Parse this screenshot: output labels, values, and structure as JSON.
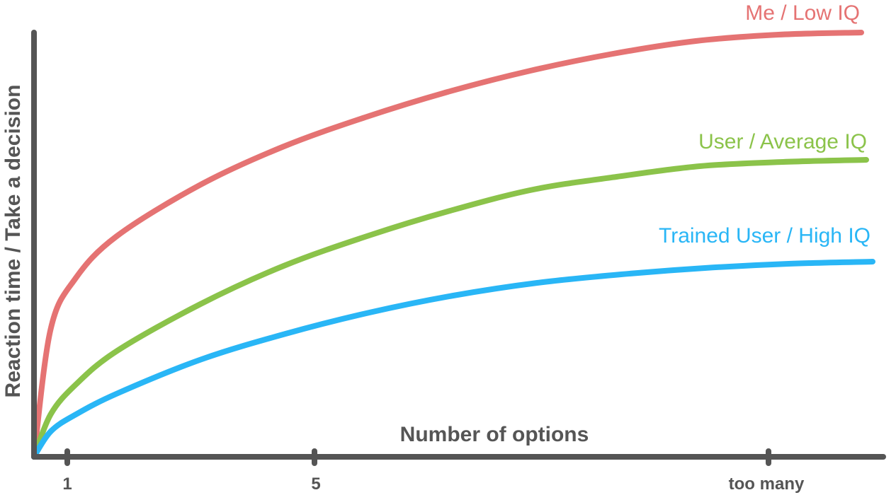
{
  "chart_data": {
    "type": "line",
    "title": "",
    "xlabel": "Number of options",
    "ylabel": "Reaction time / Take a decision",
    "x_ticks": [
      "1",
      "5",
      "too many"
    ],
    "grid": false,
    "legend": "inline labels at line ends",
    "series": [
      {
        "name": "Me / Low IQ",
        "color": "#e57373",
        "x": [
          0,
          0.02,
          0.05,
          0.1,
          0.2,
          0.3,
          0.4,
          0.5,
          0.6,
          0.7,
          0.8,
          0.9,
          1.0
        ],
        "y": [
          0,
          0.3,
          0.42,
          0.52,
          0.64,
          0.73,
          0.8,
          0.86,
          0.91,
          0.95,
          0.98,
          0.995,
          1.0
        ]
      },
      {
        "name": "User / Average IQ",
        "color": "#8bc34a",
        "x": [
          0,
          0.02,
          0.05,
          0.1,
          0.2,
          0.3,
          0.4,
          0.5,
          0.6,
          0.7,
          0.8,
          0.9,
          1.0
        ],
        "y": [
          0,
          0.1,
          0.17,
          0.25,
          0.36,
          0.45,
          0.52,
          0.58,
          0.63,
          0.66,
          0.685,
          0.695,
          0.7
        ]
      },
      {
        "name": "Trained User / High IQ",
        "color": "#29b6f6",
        "x": [
          0,
          0.02,
          0.05,
          0.1,
          0.2,
          0.3,
          0.4,
          0.5,
          0.6,
          0.7,
          0.8,
          0.9,
          1.0
        ],
        "y": [
          0,
          0.06,
          0.1,
          0.15,
          0.23,
          0.29,
          0.34,
          0.38,
          0.41,
          0.43,
          0.445,
          0.455,
          0.46
        ]
      }
    ]
  }
}
